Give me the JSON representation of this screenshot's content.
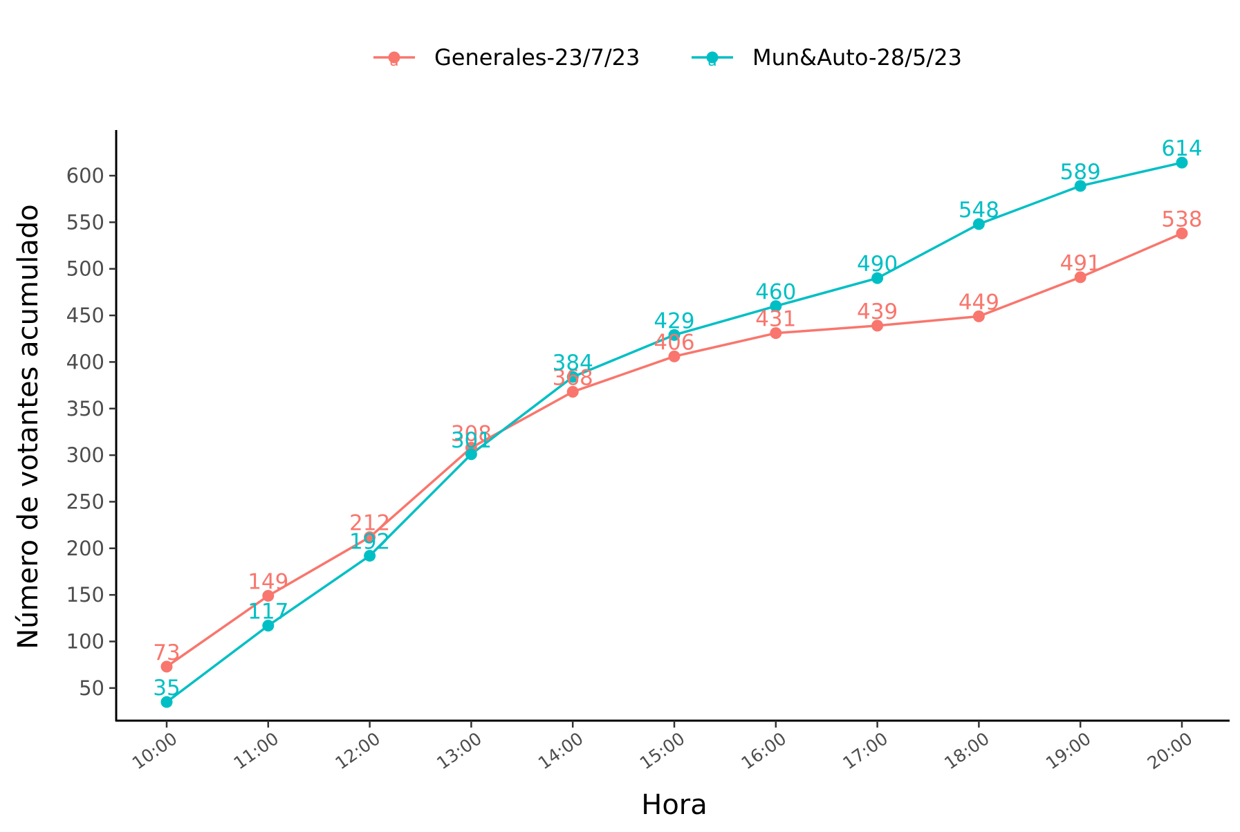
{
  "chart_data": {
    "type": "line",
    "title": "",
    "xlabel": "Hora",
    "ylabel": "Número de votantes acumulado",
    "categories": [
      "10:00",
      "11:00",
      "12:00",
      "13:00",
      "14:00",
      "15:00",
      "16:00",
      "17:00",
      "18:00",
      "19:00",
      "20:00"
    ],
    "yticks": [
      50,
      100,
      150,
      200,
      250,
      300,
      350,
      400,
      450,
      500,
      550,
      600
    ],
    "ylim": [
      15,
      649
    ],
    "grid": false,
    "legend_position": "top",
    "legend_key_glyph": "a",
    "series": [
      {
        "name": "Generales-23/7/23",
        "color": "#F8766D",
        "values": [
          73,
          149,
          212,
          308,
          368,
          406,
          431,
          439,
          449,
          491,
          538
        ]
      },
      {
        "name": "Mun&Auto-28/5/23",
        "color": "#00BFC4",
        "values": [
          35,
          117,
          192,
          301,
          384,
          429,
          460,
          490,
          548,
          589,
          614
        ]
      }
    ]
  }
}
